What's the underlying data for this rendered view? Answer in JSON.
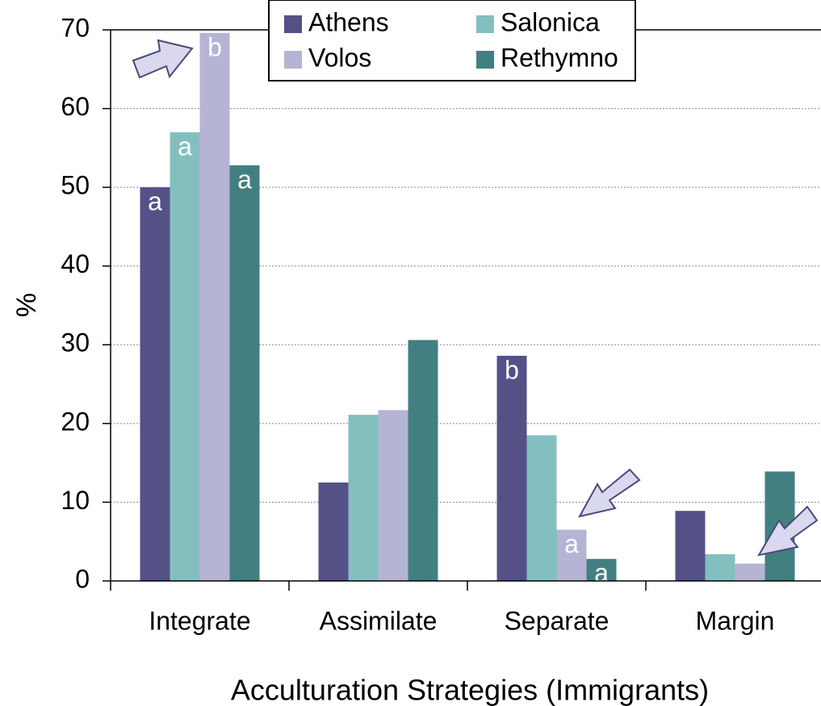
{
  "chart_data": {
    "type": "bar",
    "y_label": "%",
    "x_label": "Acculturation Strategies (Immigrants)",
    "categories": [
      "Integrate",
      "Assimilate",
      "Separate",
      "Margin"
    ],
    "series": [
      {
        "name": "Athens",
        "color": "#545187",
        "values": [
          50,
          12.5,
          28.6,
          8.9
        ],
        "letters": [
          "a",
          null,
          "b",
          null
        ]
      },
      {
        "name": "Salonica",
        "color": "#84bfc0",
        "values": [
          57,
          21.1,
          18.5,
          3.4
        ],
        "letters": [
          "a",
          null,
          null,
          null
        ]
      },
      {
        "name": "Volos",
        "color": "#b6b4d4",
        "values": [
          69.6,
          21.7,
          6.5,
          2.2
        ],
        "letters": [
          "b",
          null,
          "a",
          null
        ]
      },
      {
        "name": "Rethymno",
        "color": "#427f80",
        "values": [
          52.8,
          30.6,
          2.8,
          13.9
        ],
        "letters": [
          "a",
          null,
          "a",
          null
        ]
      }
    ],
    "ylim": [
      0,
      70
    ],
    "yticks": [
      0,
      10,
      20,
      30,
      40,
      50,
      60,
      70
    ],
    "grid": true
  }
}
